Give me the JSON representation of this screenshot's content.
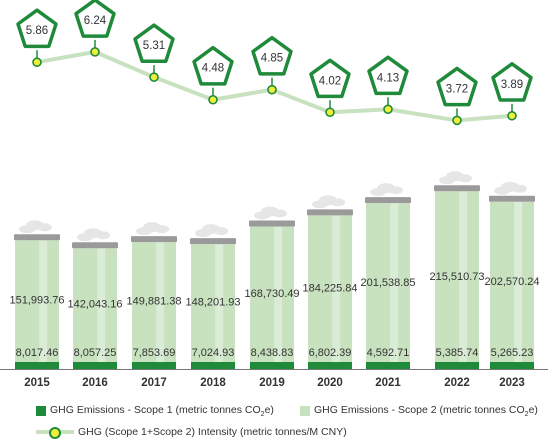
{
  "chart_data": {
    "type": "bar",
    "categories": [
      "2015",
      "2016",
      "2017",
      "2018",
      "2019",
      "2020",
      "2021",
      "2022",
      "2023"
    ],
    "series": [
      {
        "name": "GHG Emissions - Scope 1 (metric tonnes CO₂e)",
        "values": [
          8017.46,
          8057.25,
          7853.69,
          7024.93,
          8438.83,
          6802.39,
          4592.71,
          5385.74,
          5265.23
        ],
        "labels": [
          "8,017.46",
          "8,057.25",
          "7,853.69",
          "7,024.93",
          "8,438.83",
          "6,802.39",
          "4,592.71",
          "5,385.74",
          "5,265.23"
        ],
        "color": "#1e8a3a"
      },
      {
        "name": "GHG Emissions - Scope 2 (metric tonnes CO₂e)",
        "values": [
          151993.76,
          142043.16,
          149881.38,
          148201.93,
          168730.49,
          184225.84,
          201538.85,
          215510.73,
          202570.24
        ],
        "labels": [
          "151,993.76",
          "142,043.16",
          "149,881.38",
          "148,201.93",
          "168,730.49",
          "184,225.84",
          "201,538.85",
          "215,510.73",
          "202,570.24"
        ],
        "color": "#c8e2c0"
      },
      {
        "name": "GHG (Scope 1+Scope 2) Intensity (metric tonnes/M CNY)",
        "type": "line",
        "values": [
          5.86,
          6.24,
          5.31,
          4.48,
          4.85,
          4.02,
          4.13,
          3.72,
          3.89
        ],
        "labels": [
          "5.86",
          "6.24",
          "5.31",
          "4.48",
          "4.85",
          "4.02",
          "4.13",
          "3.72",
          "3.89"
        ],
        "color": "#c8e2c0",
        "marker_color": "#f0ee3a"
      }
    ],
    "grid": false,
    "legend": "bottom"
  },
  "legend": {
    "scope1_prefix": "GHG Emissions - Scope 1 (metric tonnes CO",
    "scope1_suffix": "e)",
    "scope2_prefix": "GHG Emissions - Scope 2 (metric tonnes CO",
    "scope2_suffix": "e)",
    "sub2": "2",
    "intensity": "GHG (Scope 1+Scope 2) Intensity (metric tonnes/M CNY)"
  },
  "colors": {
    "dark_green": "#1e8a3a",
    "light_green": "#c8e2c0",
    "chimney_cap": "#9a9a9a",
    "smoke": "#e6e6e6",
    "marker_fill": "#f0ee3a"
  }
}
